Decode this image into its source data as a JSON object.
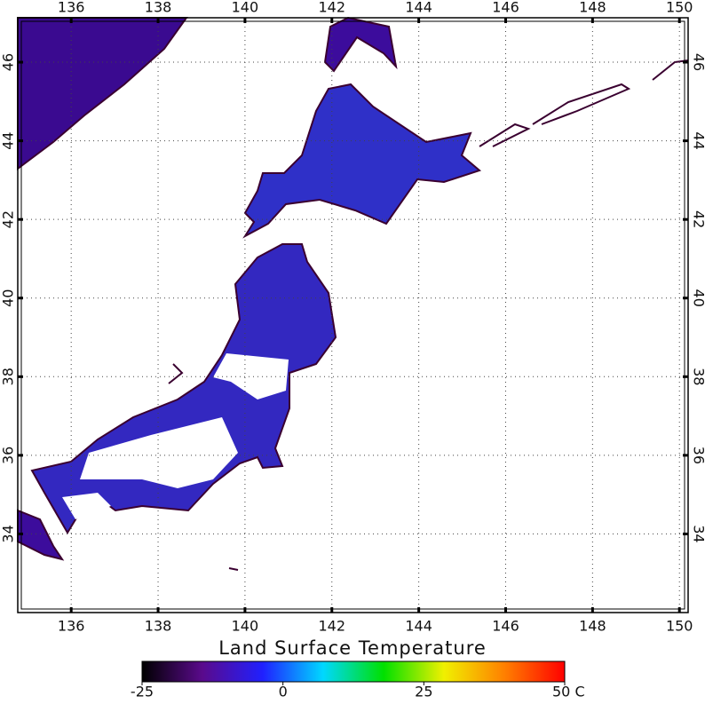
{
  "map": {
    "lon_range": [
      134.77,
      150.2
    ],
    "lat_range": [
      32.0,
      47.13
    ],
    "lon_ticks": [
      136,
      138,
      140,
      142,
      144,
      146,
      148,
      150
    ],
    "lat_ticks": [
      34,
      36,
      38,
      40,
      42,
      44,
      46
    ]
  },
  "colorbar": {
    "title": "Land Surface Temperature",
    "range": [
      -25,
      50
    ],
    "ticks": [
      -25,
      0,
      25,
      {
        "value": 50,
        "label": "50 C"
      }
    ],
    "colors": [
      "#000000",
      "#5a0a8c",
      "#2020ff",
      "#00d8ff",
      "#00e000",
      "#f0f000",
      "#ff8000",
      "#ff0000"
    ]
  }
}
